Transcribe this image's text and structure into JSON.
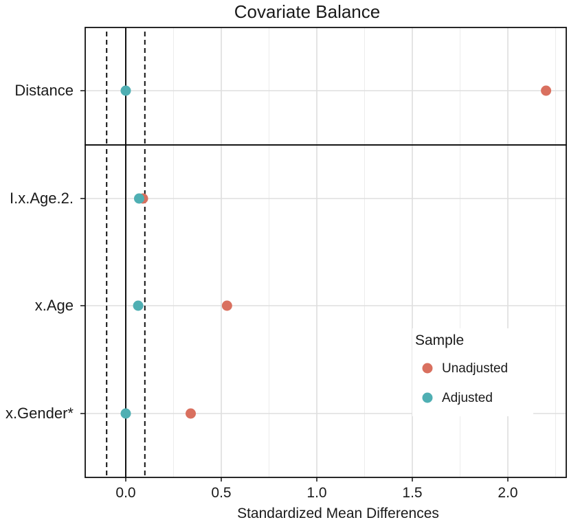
{
  "chart_data": {
    "type": "scatter",
    "title": "Covariate Balance",
    "xlabel": "Standardized Mean Differences",
    "ylabel": "",
    "xlim": [
      -0.21,
      2.3
    ],
    "xticks": [
      0.0,
      0.5,
      1.0,
      1.5,
      2.0
    ],
    "xtick_labels": [
      "0.0",
      "0.5",
      "1.0",
      "1.5",
      "2.0"
    ],
    "grid": true,
    "reference_lines": {
      "solid": 0.0,
      "dashed": [
        -0.1,
        0.1
      ]
    },
    "panels": [
      {
        "name": "distance",
        "covariates": [
          "Distance"
        ]
      },
      {
        "name": "covariates",
        "covariates": [
          "I.x.Age.2.",
          "x.Age",
          "x.Gender*"
        ]
      }
    ],
    "categories": [
      "Distance",
      "I.x.Age.2.",
      "x.Age",
      "x.Gender*"
    ],
    "series": [
      {
        "name": "Unadjusted",
        "color": "#D9705F",
        "values": [
          2.2,
          0.09,
          0.53,
          0.34
        ]
      },
      {
        "name": "Adjusted",
        "color": "#4FAFB3",
        "values": [
          0.0,
          0.07,
          0.065,
          0.0
        ]
      }
    ],
    "legend": {
      "title": "Sample",
      "position": "right"
    }
  }
}
